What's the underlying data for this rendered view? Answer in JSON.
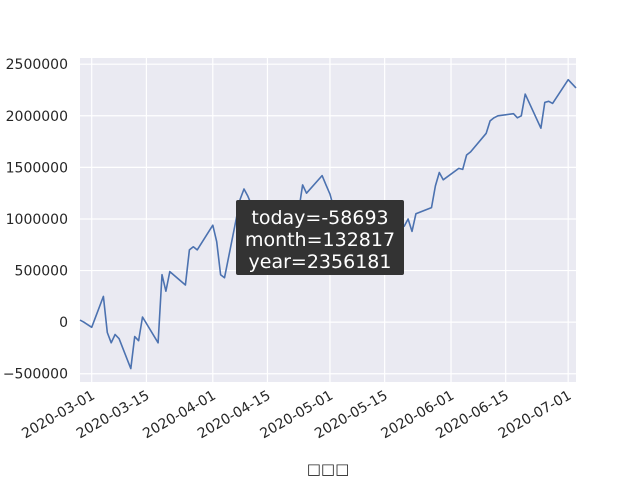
{
  "chart_data": {
    "type": "line",
    "title": "",
    "xlabel": "□□□",
    "ylabel": "",
    "x_ticks": [
      "2020-03-01",
      "2020-03-15",
      "2020-04-01",
      "2020-04-15",
      "2020-05-01",
      "2020-05-15",
      "2020-06-01",
      "2020-06-15",
      "2020-07-01"
    ],
    "y_ticks": [
      "−500000",
      "0",
      "500000",
      "1000000",
      "1500000",
      "2000000",
      "2500000"
    ],
    "xlim": [
      "2020-02-27",
      "2020-07-03"
    ],
    "ylim": [
      -580000,
      2560000
    ],
    "grid": true,
    "colors": {
      "background": "#eaeaf2",
      "grid": "#ffffff",
      "line": "#4c72b0",
      "tooltip_bg": "#333333"
    },
    "series": [
      {
        "x": [
          "2020-02-27",
          "2020-02-28",
          "2020-03-01",
          "2020-03-04",
          "2020-03-05",
          "2020-03-06",
          "2020-03-07",
          "2020-03-08",
          "2020-03-11",
          "2020-03-12",
          "2020-03-13",
          "2020-03-14",
          "2020-03-18",
          "2020-03-19",
          "2020-03-20",
          "2020-03-21",
          "2020-03-25",
          "2020-03-26",
          "2020-03-27",
          "2020-03-28",
          "2020-04-01",
          "2020-04-02",
          "2020-04-03",
          "2020-04-04",
          "2020-04-08",
          "2020-04-09",
          "2020-04-10",
          "2020-04-11",
          "2020-04-15",
          "2020-04-16",
          "2020-04-17",
          "2020-04-18",
          "2020-04-22",
          "2020-04-23",
          "2020-04-24",
          "2020-04-25",
          "2020-04-29",
          "2020-04-30",
          "2020-05-01",
          "2020-05-02",
          "2020-05-06",
          "2020-05-07",
          "2020-05-08",
          "2020-05-09",
          "2020-05-13",
          "2020-05-14",
          "2020-05-15",
          "2020-05-16",
          "2020-05-20",
          "2020-05-21",
          "2020-05-22",
          "2020-05-23",
          "2020-05-27",
          "2020-05-28",
          "2020-05-29",
          "2020-05-30",
          "2020-06-03",
          "2020-06-04",
          "2020-06-05",
          "2020-06-06",
          "2020-06-10",
          "2020-06-11",
          "2020-06-12",
          "2020-06-13",
          "2020-06-17",
          "2020-06-18",
          "2020-06-19",
          "2020-06-20",
          "2020-06-24",
          "2020-06-25",
          "2020-06-26",
          "2020-06-27",
          "2020-07-01",
          "2020-07-02",
          "2020-07-03"
        ],
        "values": [
          20000,
          0,
          -50000,
          250000,
          -100000,
          -200000,
          -120000,
          -160000,
          -450000,
          -140000,
          -180000,
          50000,
          -200000,
          460000,
          300000,
          490000,
          360000,
          700000,
          730000,
          700000,
          940000,
          780000,
          460000,
          430000,
          1190000,
          1290000,
          1220000,
          1130000,
          900000,
          730000,
          980000,
          1090000,
          1120000,
          1080000,
          1330000,
          1250000,
          1420000,
          1330000,
          1240000,
          1100000,
          1080000,
          1110000,
          1100000,
          1030000,
          880000,
          820000,
          800000,
          900000,
          930000,
          1000000,
          880000,
          1050000,
          1110000,
          1320000,
          1450000,
          1380000,
          1490000,
          1480000,
          1620000,
          1650000,
          1830000,
          1950000,
          1980000,
          2000000,
          2020000,
          1980000,
          2000000,
          2210000,
          1880000,
          2130000,
          2140000,
          2120000,
          2350000,
          2310000,
          2270000
        ]
      }
    ],
    "tooltip": {
      "lines": [
        "today=-58693",
        "month=132817",
        "year=2356181"
      ]
    }
  }
}
